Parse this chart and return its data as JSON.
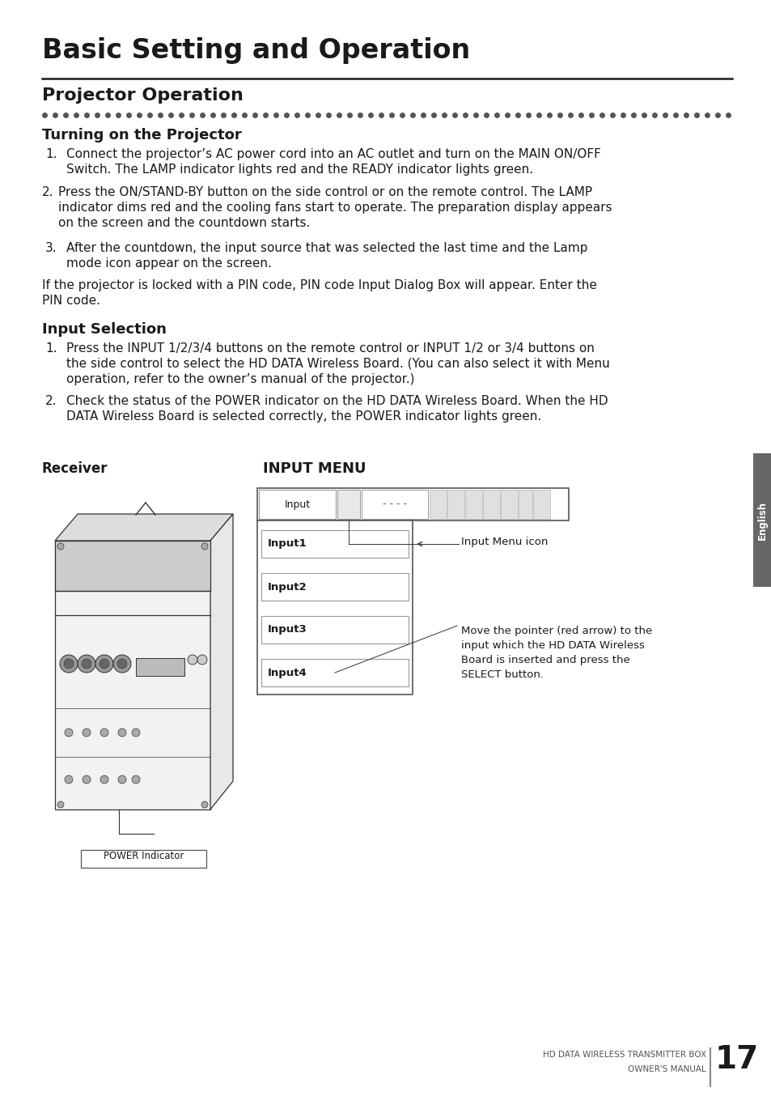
{
  "page_bg": "#ffffff",
  "main_title": "Basic Setting and Operation",
  "section_title": "Projector Operation",
  "subsection1": "Turning on the Projector",
  "subsection2": "Input Selection",
  "p1_num": "1.",
  "p1_line1": "Connect the projector’s AC power cord into an AC outlet and turn on the MAIN ON/OFF",
  "p1_line2": "Switch. The LAMP indicator lights red and the READY indicator lights green.",
  "p2_num": "2.",
  "p2_line1": "Press the ON/STAND-BY button on the side control or on the remote control. The LAMP",
  "p2_line2": "indicator dims red and the cooling fans start to operate. The preparation display appears",
  "p2_line3": "on the screen and the countdown starts.",
  "p3_num": "3.",
  "p3_line1": "After the countdown, the input source that was selected the last time and the Lamp",
  "p3_line2": "mode icon appear on the screen.",
  "pin_line1": "If the projector is locked with a PIN code, PIN code Input Dialog Box will appear. Enter the",
  "pin_line2": "PIN code.",
  "is1_num": "1.",
  "is1_line1": "Press the INPUT 1/2/3/4 buttons on the remote control or INPUT 1/2 or 3/4 buttons on",
  "is1_line2": "the side control to select the HD DATA Wireless Board. (You can also select it with Menu",
  "is1_line3": "operation, refer to the owner’s manual of the projector.)",
  "is2_num": "2.",
  "is2_line1": "Check the status of the POWER indicator on the HD DATA Wireless Board. When the HD",
  "is2_line2": "DATA Wireless Board is selected correctly, the POWER indicator lights green.",
  "receiver_label": "Receiver",
  "input_menu_label": "INPUT MENU",
  "power_indicator_label": "POWER Indicator",
  "input_menu_icon_label": "Input Menu icon",
  "input_move_label": "Move the pointer (red arrow) to the\ninput which the HD DATA Wireless\nBoard is inserted and press the\nSELECT button.",
  "input_items": [
    "Input1",
    "Input2",
    "Input3",
    "Input4"
  ],
  "footer_line1": "HD DATA WIRELESS TRANSMITTER BOX",
  "footer_line2": "OWNER'S MANUAL",
  "footer_page": "17",
  "english_tab": "English",
  "text_color": "#1a1a1a",
  "dot_color": "#555555",
  "rule_color": "#1a1a1a"
}
